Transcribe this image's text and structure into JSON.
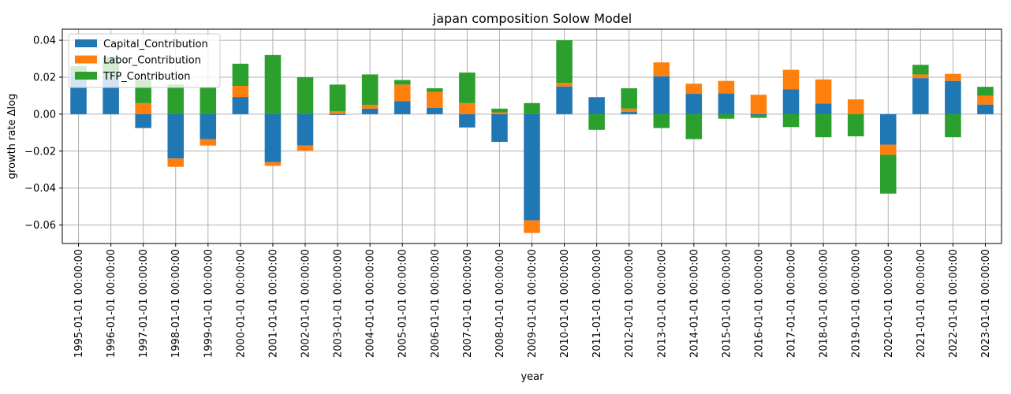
{
  "chart_data": {
    "type": "bar",
    "stacked": true,
    "title": "japan composition Solow Model",
    "xlabel": "year",
    "ylabel": "growth rate Δlog",
    "ylim": [
      -0.07,
      0.046
    ],
    "yticks": [
      -0.06,
      -0.04,
      -0.02,
      0.0,
      0.02,
      0.04
    ],
    "ytick_labels": [
      "−0.06",
      "−0.04",
      "−0.02",
      "0.00",
      "0.02",
      "0.04"
    ],
    "grid": true,
    "legend_position": "top-left",
    "categories": [
      "1995-01-01 00:00:00",
      "1996-01-01 00:00:00",
      "1997-01-01 00:00:00",
      "1998-01-01 00:00:00",
      "1999-01-01 00:00:00",
      "2000-01-01 00:00:00",
      "2001-01-01 00:00:00",
      "2002-01-01 00:00:00",
      "2003-01-01 00:00:00",
      "2004-01-01 00:00:00",
      "2005-01-01 00:00:00",
      "2006-01-01 00:00:00",
      "2007-01-01 00:00:00",
      "2008-01-01 00:00:00",
      "2009-01-01 00:00:00",
      "2010-01-01 00:00:00",
      "2011-01-01 00:00:00",
      "2012-01-01 00:00:00",
      "2013-01-01 00:00:00",
      "2014-01-01 00:00:00",
      "2015-01-01 00:00:00",
      "2016-01-01 00:00:00",
      "2017-01-01 00:00:00",
      "2018-01-01 00:00:00",
      "2019-01-01 00:00:00",
      "2020-01-01 00:00:00",
      "2021-01-01 00:00:00",
      "2022-01-01 00:00:00",
      "2023-01-01 00:00:00"
    ],
    "series": [
      {
        "name": "Capital_Contribution",
        "color": "#1f77b4",
        "values": [
          0.021,
          0.02,
          -0.0075,
          -0.024,
          -0.0135,
          0.0093,
          -0.026,
          -0.017,
          -0.0005,
          0.003,
          0.007,
          0.0035,
          -0.0072,
          -0.015,
          -0.0575,
          0.015,
          0.0092,
          0.0012,
          0.0205,
          0.011,
          0.0112,
          -0.0005,
          0.0135,
          0.0058,
          0.0,
          -0.0165,
          0.0195,
          0.018,
          0.0052
        ]
      },
      {
        "name": "Labor_Contribution",
        "color": "#ff7f0e",
        "values": [
          0.0,
          0.0,
          0.006,
          -0.0045,
          -0.0035,
          0.006,
          -0.002,
          -0.0028,
          0.0015,
          0.002,
          0.009,
          0.0085,
          0.006,
          0.001,
          -0.0068,
          0.002,
          0.0,
          0.0018,
          0.0075,
          0.0055,
          0.0068,
          0.0105,
          0.0105,
          0.013,
          0.008,
          -0.0055,
          0.002,
          0.0038,
          0.0048
        ]
      },
      {
        "name": "TFP_Contribution",
        "color": "#2ca02c",
        "values": [
          0.005,
          0.011,
          0.0125,
          0.016,
          0.0148,
          0.012,
          0.032,
          0.02,
          0.0145,
          0.0165,
          0.0025,
          0.002,
          0.0165,
          0.002,
          0.006,
          0.023,
          -0.0085,
          0.011,
          -0.0075,
          -0.0135,
          -0.0025,
          -0.0015,
          -0.007,
          -0.0125,
          -0.012,
          -0.021,
          0.0052,
          -0.0125,
          0.0048
        ]
      }
    ]
  }
}
